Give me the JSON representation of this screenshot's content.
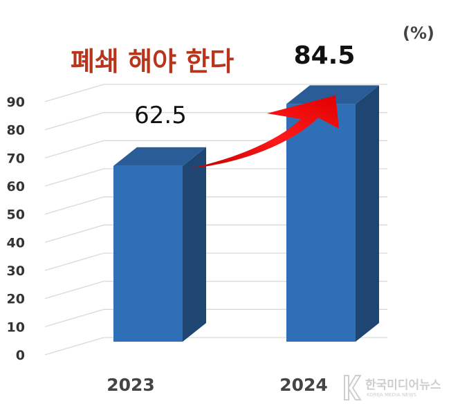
{
  "chart_data": {
    "type": "bar",
    "categories": [
      "2023",
      "2024"
    ],
    "values": [
      62.5,
      84.5
    ],
    "data_labels": [
      "62.5",
      "84.5"
    ],
    "unit": "(%)",
    "annotation": "폐쇄 해야 한다",
    "y_ticks": [
      "0",
      "10",
      "20",
      "30",
      "40",
      "50",
      "60",
      "70",
      "80",
      "90"
    ],
    "ylim": [
      0,
      90
    ],
    "grid": true,
    "legend": "none",
    "style": "3d-column",
    "colors": {
      "bar_front": "#2e6fb7",
      "bar_side": "#1f4673",
      "bar_top": "#2a5d97",
      "arrow": "#ee1010",
      "headline": "#b8341b"
    }
  },
  "watermark": {
    "main": "한국미디어뉴스",
    "sub": "KOREA MEDIA NEWS"
  }
}
